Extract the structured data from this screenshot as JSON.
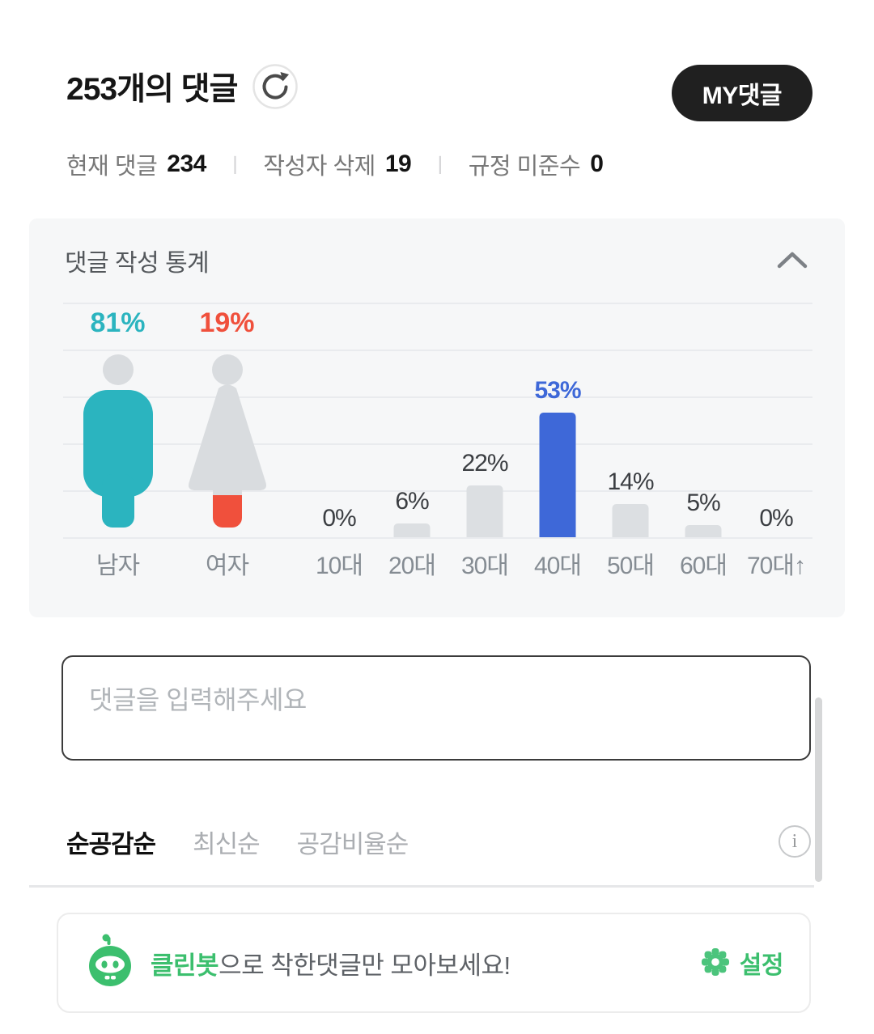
{
  "header": {
    "title_count": "253",
    "title_suffix": "개의 댓글",
    "my_button": "MY댓글"
  },
  "substats": {
    "separator": "ㅣ",
    "items": [
      {
        "label": "현재 댓글",
        "value": "234"
      },
      {
        "label": "작성자 삭제",
        "value": "19"
      },
      {
        "label": "규정 미준수",
        "value": "0"
      }
    ]
  },
  "stats_card": {
    "title": "댓글 작성 통계"
  },
  "chart_data": {
    "type": "bar",
    "title": "댓글 작성 통계",
    "ylim": [
      0,
      100
    ],
    "grid": true,
    "grid_interval_pct": 20,
    "gender": {
      "categories": [
        "남자",
        "여자"
      ],
      "values": [
        81,
        19
      ],
      "male_color": "#2bb4bf",
      "female_color": "#f0503c",
      "figure_gray": "#d9dcdf"
    },
    "age": {
      "categories": [
        "10대",
        "20대",
        "30대",
        "40대",
        "50대",
        "60대",
        "70대↑"
      ],
      "values": [
        0,
        6,
        22,
        53,
        14,
        5,
        0
      ],
      "highlight_index": 3,
      "highlight_color": "#3e68d8",
      "bar_color": "#dcdfe2",
      "label_color": "#3b3e42"
    }
  },
  "composer": {
    "placeholder": "댓글을 입력해주세요"
  },
  "sort_bar": {
    "tabs": [
      {
        "label": "순공감순",
        "active": true
      },
      {
        "label": "최신순",
        "active": false
      },
      {
        "label": "공감비율순",
        "active": false
      }
    ],
    "info_icon": "i"
  },
  "cleanbot": {
    "bot_name": "클린봇",
    "message_suffix": "으로 착한댓글만 모아보세요!",
    "settings_label": "설정",
    "green": "#3cbf6e"
  },
  "colors": {
    "card_bg": "#f6f7f8",
    "grid_line": "#e9ebee",
    "pill_bg": "#202020",
    "teal": "#2bb4bf",
    "red": "#f0503c",
    "blue": "#3e68d8"
  }
}
